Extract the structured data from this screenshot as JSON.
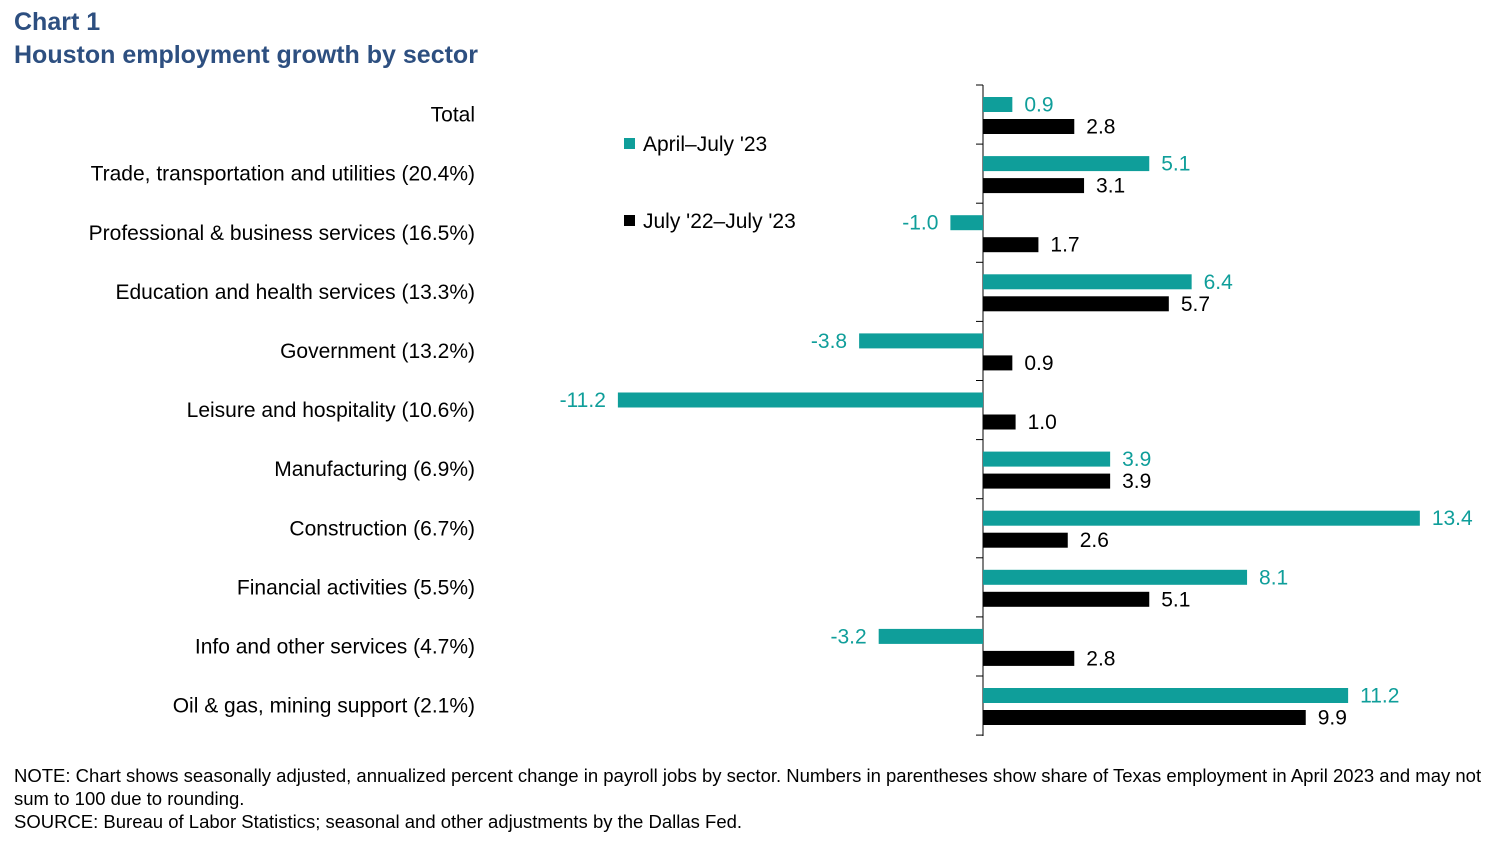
{
  "header": {
    "chart_number": "Chart 1",
    "title": "Houston employment growth by sector"
  },
  "colors": {
    "teal": "#0f9e9a",
    "black": "#000000",
    "title": "#2d4f80"
  },
  "chart_data": {
    "type": "bar",
    "orientation": "horizontal",
    "title": "Houston employment growth by sector",
    "categories": [
      "Total",
      "Trade, transportation and utilities (20.4%)",
      "Professional & business services (16.5%)",
      "Education and health services (13.3%)",
      "Government (13.2%)",
      "Leisure and hospitality (10.6%)",
      "Manufacturing (6.9%)",
      "Construction (6.7%)",
      "Financial activities (5.5%)",
      "Info and other services (4.7%)",
      "Oil & gas, mining support (2.1%)"
    ],
    "series": [
      {
        "name": "April–July '23",
        "color": "#0f9e9a",
        "values": [
          0.9,
          5.1,
          -1.0,
          6.4,
          -3.8,
          -11.2,
          3.9,
          13.4,
          8.1,
          -3.2,
          11.2
        ],
        "labels": [
          "0.9",
          "5.1",
          "-1.0",
          "6.4",
          "-3.8",
          "-11.2",
          "3.9",
          "13.4",
          "8.1",
          "-3.2",
          "11.2"
        ]
      },
      {
        "name": "July '22–July '23",
        "color": "#000000",
        "values": [
          2.8,
          3.1,
          1.7,
          5.7,
          0.9,
          1.0,
          3.9,
          2.6,
          5.1,
          2.8,
          9.9
        ],
        "labels": [
          "2.8",
          "3.1",
          "1.7",
          "5.7",
          "0.9",
          "1.0",
          "3.9",
          "2.6",
          "5.1",
          "2.8",
          "9.9"
        ]
      }
    ],
    "xlim": [
      -11.2,
      13.4
    ],
    "grid": false,
    "legend_position": "top-center"
  },
  "notes": {
    "note": "NOTE: Chart shows seasonally adjusted, annualized percent change in payroll jobs by sector. Numbers in parentheses show share of Texas employment in April 2023 and may not sum to 100 due to rounding.",
    "source": "SOURCE: Bureau of Labor Statistics; seasonal and other adjustments by the Dallas Fed."
  }
}
